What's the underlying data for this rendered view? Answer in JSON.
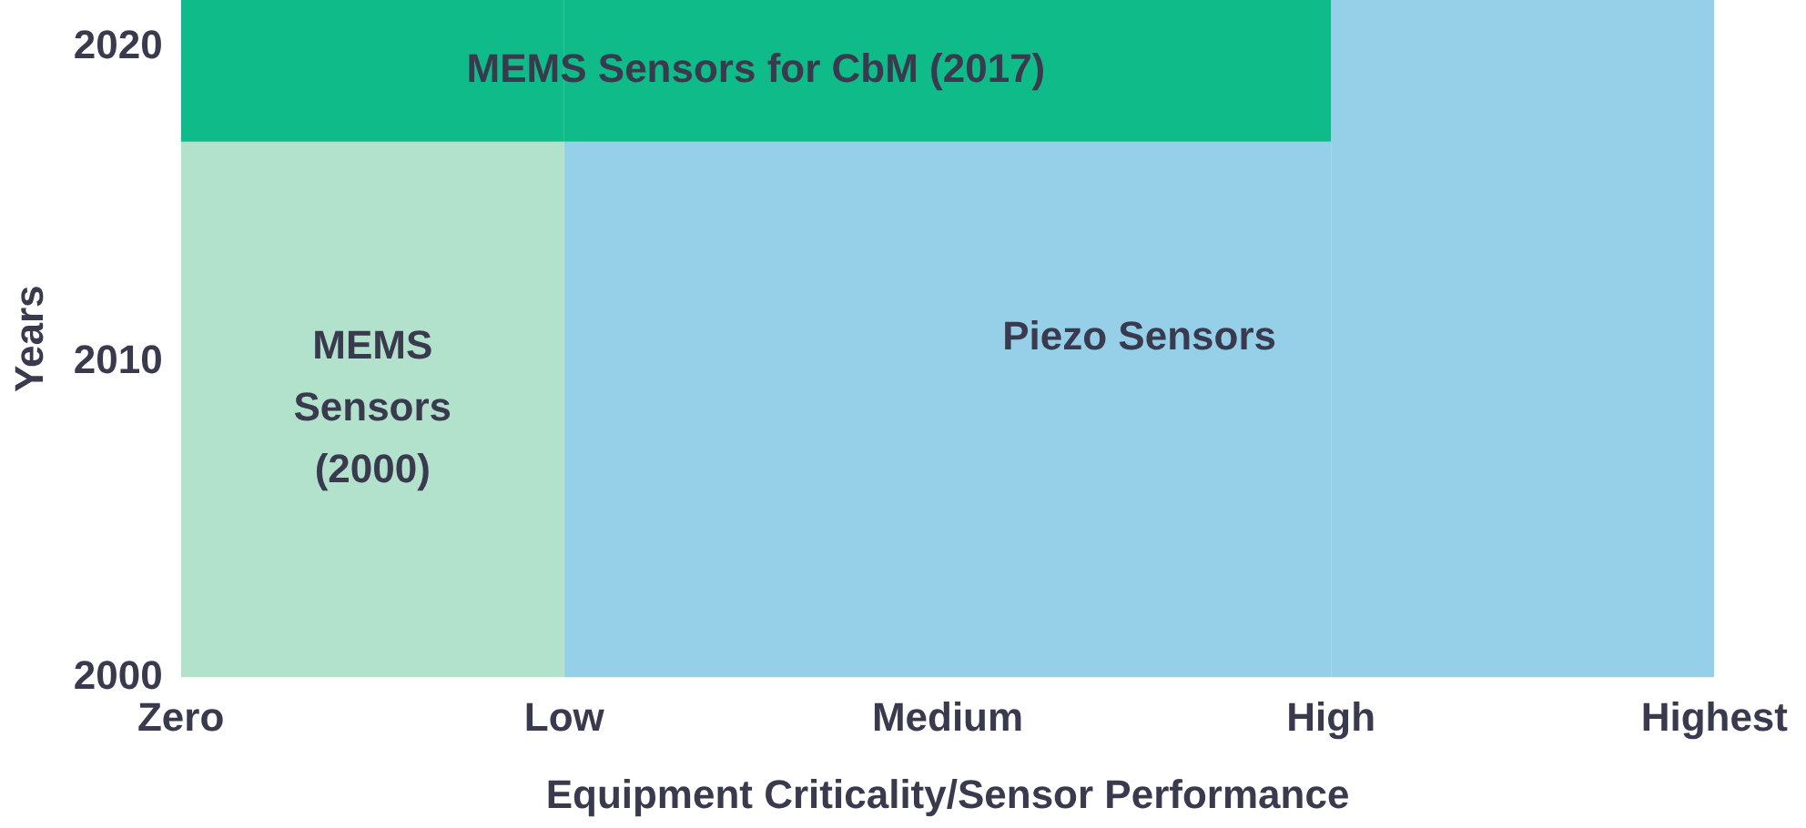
{
  "chart_data": {
    "type": "bar",
    "xlabel": "Equipment Criticality/Sensor Performance",
    "ylabel": "Years",
    "categories": [
      "Zero",
      null,
      "Low",
      null,
      "Medium",
      null,
      "High",
      null,
      "Highest"
    ],
    "ylim": [
      2000,
      2021.5
    ],
    "yticks": [
      2000,
      2010,
      2020
    ],
    "series": [
      {
        "name": "MEMS Sensors for CbM (2017)",
        "color": "#10bb8a",
        "base": [
          null,
          2017,
          null,
          2017,
          null,
          2017,
          null,
          null,
          null
        ],
        "values": [
          null,
          4.5,
          null,
          4.5,
          null,
          4.5,
          null,
          null,
          null
        ]
      },
      {
        "name": "MEMS Sensors (2000)",
        "color": "#b2e2cb",
        "base": [
          null,
          2000,
          null,
          null,
          null,
          null,
          null,
          null,
          null
        ],
        "values": [
          null,
          17,
          null,
          null,
          null,
          null,
          null,
          null,
          null
        ]
      },
      {
        "name": "Piezo Sensors",
        "color": "#96cfe8",
        "base": [
          null,
          null,
          null,
          2000,
          null,
          2000,
          null,
          2000,
          null
        ],
        "values": [
          null,
          null,
          null,
          17,
          null,
          17,
          null,
          21.5,
          null
        ]
      }
    ],
    "grid": false,
    "legend": false
  }
}
